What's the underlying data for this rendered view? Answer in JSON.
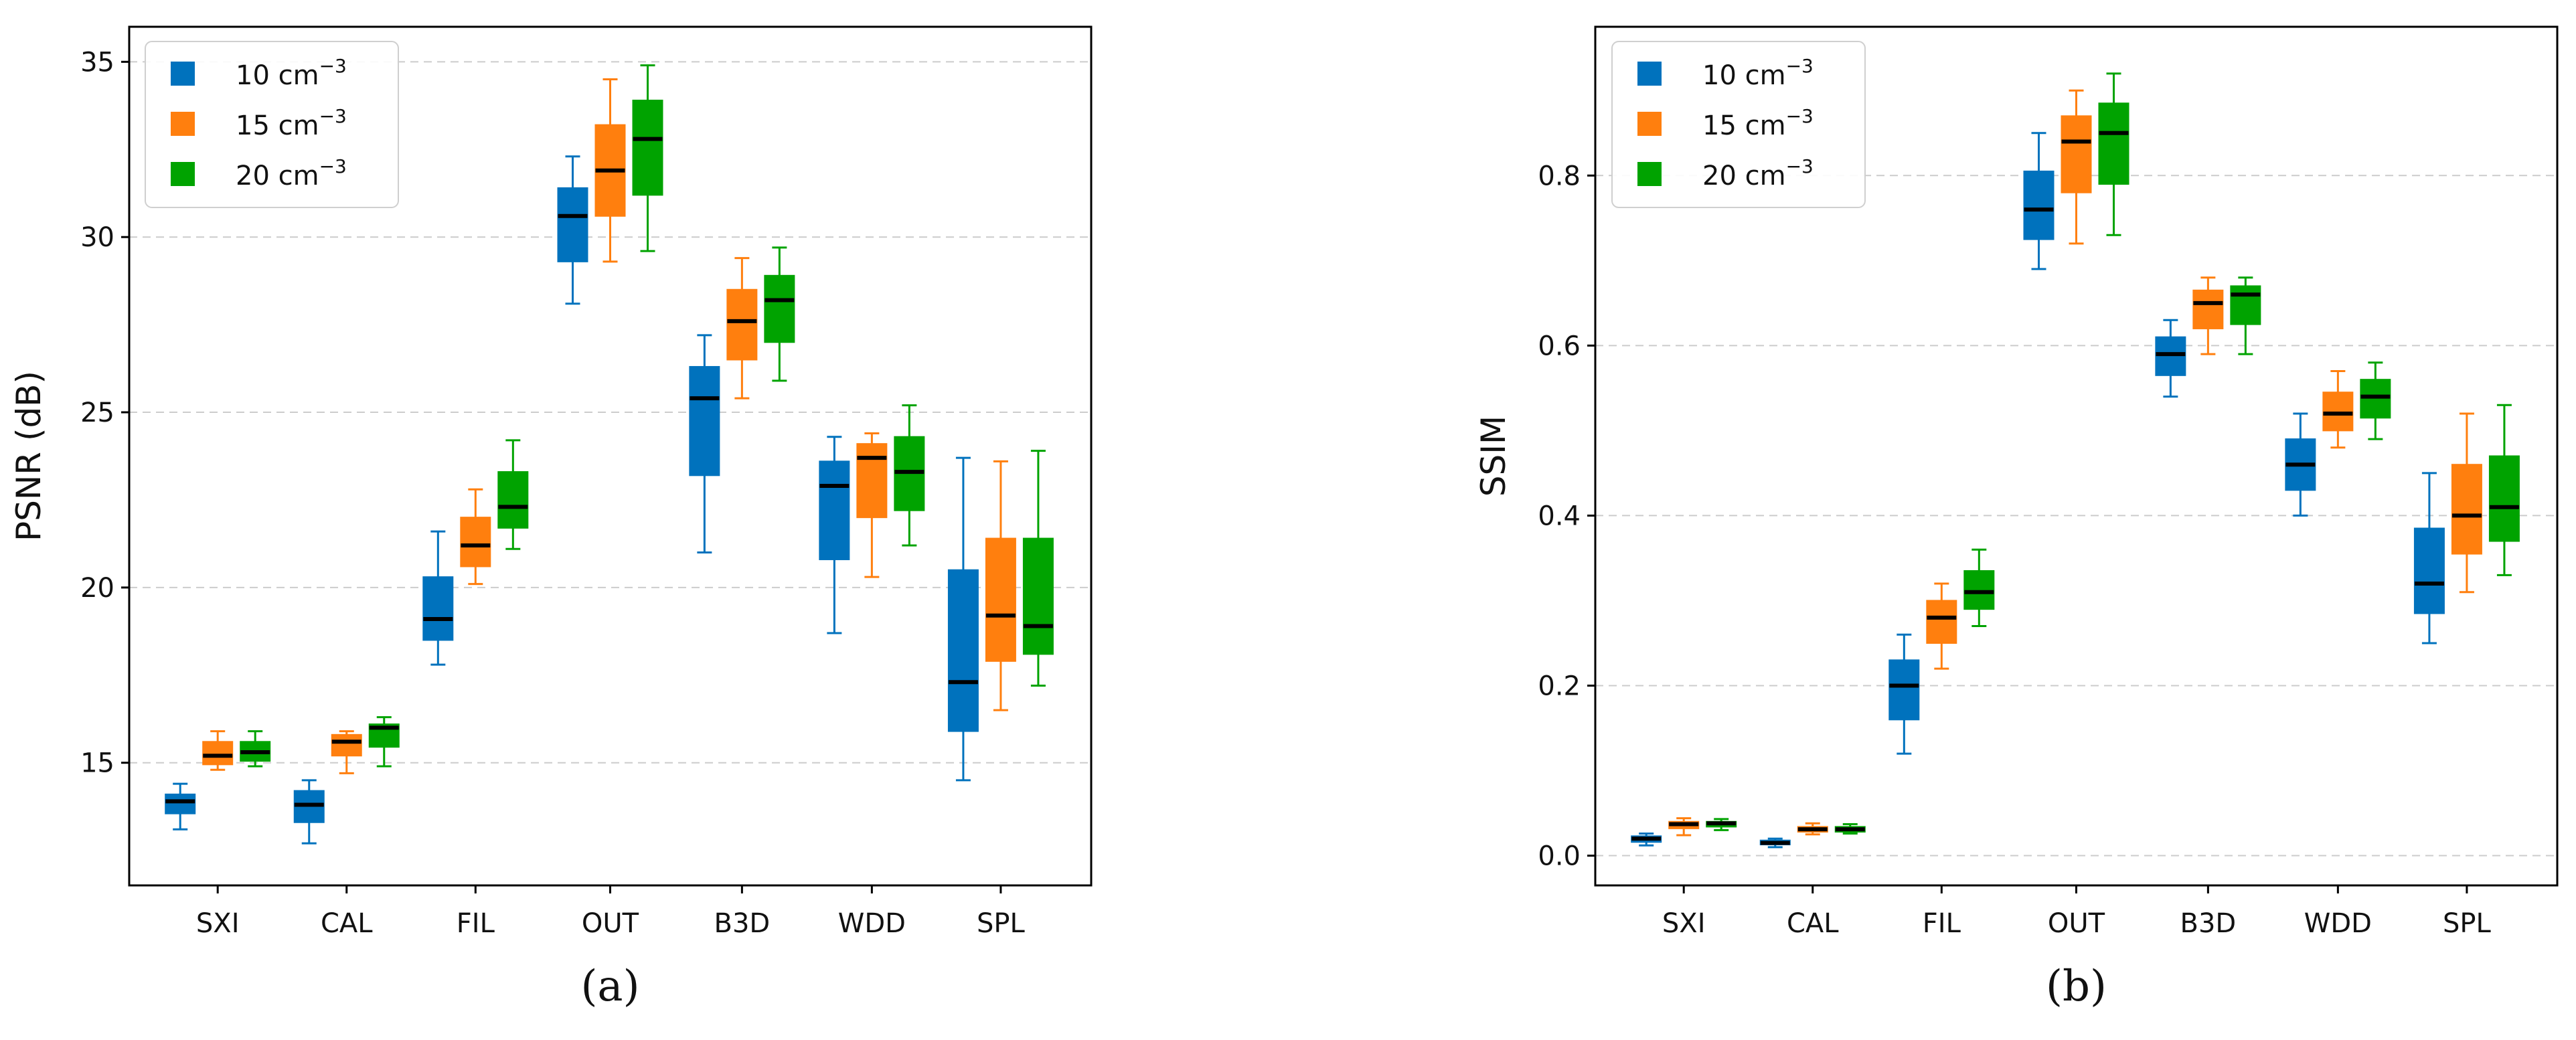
{
  "colors": {
    "10": "#0072bd",
    "15": "#ff7f0e",
    "20": "#00a300",
    "median": "#000000",
    "grid": "#cccccc"
  },
  "chart_data": [
    {
      "type": "boxplot",
      "panel": "(a)",
      "ylabel": "PSNR (dB)",
      "xlabel": "",
      "ylim": [
        11.5,
        36.0
      ],
      "yticks": [
        15,
        20,
        25,
        30,
        35
      ],
      "grid": "horizontal dashed",
      "legend_position": "top-left",
      "categories": [
        "SXI",
        "CAL",
        "FIL",
        "OUT",
        "B3D",
        "WDD",
        "SPL"
      ],
      "series": [
        {
          "name": "10 cm",
          "unit_sup": "−3",
          "color_key": "10",
          "boxes": [
            {
              "whislo": 13.1,
              "q1": 13.55,
              "med": 13.9,
              "q3": 14.1,
              "whishi": 14.4
            },
            {
              "whislo": 12.7,
              "q1": 13.3,
              "med": 13.8,
              "q3": 14.2,
              "whishi": 14.5
            },
            {
              "whislo": 17.8,
              "q1": 18.5,
              "med": 19.1,
              "q3": 20.3,
              "whishi": 21.6
            },
            {
              "whislo": 28.1,
              "q1": 29.3,
              "med": 30.6,
              "q3": 31.4,
              "whishi": 32.3
            },
            {
              "whislo": 21.0,
              "q1": 23.2,
              "med": 25.4,
              "q3": 26.3,
              "whishi": 27.2
            },
            {
              "whislo": 18.7,
              "q1": 20.8,
              "med": 22.9,
              "q3": 23.6,
              "whishi": 24.3
            },
            {
              "whislo": 14.5,
              "q1": 15.9,
              "med": 17.3,
              "q3": 20.5,
              "whishi": 23.7
            }
          ]
        },
        {
          "name": "15 cm",
          "unit_sup": "−3",
          "color_key": "15",
          "boxes": [
            {
              "whislo": 14.8,
              "q1": 14.95,
              "med": 15.2,
              "q3": 15.6,
              "whishi": 15.9
            },
            {
              "whislo": 14.7,
              "q1": 15.2,
              "med": 15.6,
              "q3": 15.8,
              "whishi": 15.9
            },
            {
              "whislo": 20.1,
              "q1": 20.6,
              "med": 21.2,
              "q3": 22.0,
              "whishi": 22.8
            },
            {
              "whislo": 29.3,
              "q1": 30.6,
              "med": 31.9,
              "q3": 33.2,
              "whishi": 34.5
            },
            {
              "whislo": 25.4,
              "q1": 26.5,
              "med": 27.6,
              "q3": 28.5,
              "whishi": 29.4
            },
            {
              "whislo": 20.3,
              "q1": 22.0,
              "med": 23.7,
              "q3": 24.1,
              "whishi": 24.4
            },
            {
              "whislo": 16.5,
              "q1": 17.9,
              "med": 19.2,
              "q3": 21.4,
              "whishi": 23.6
            }
          ]
        },
        {
          "name": "20 cm",
          "unit_sup": "−3",
          "color_key": "20",
          "boxes": [
            {
              "whislo": 14.9,
              "q1": 15.05,
              "med": 15.3,
              "q3": 15.6,
              "whishi": 15.9
            },
            {
              "whislo": 14.9,
              "q1": 15.45,
              "med": 16.0,
              "q3": 16.1,
              "whishi": 16.3
            },
            {
              "whislo": 21.1,
              "q1": 21.7,
              "med": 22.3,
              "q3": 23.3,
              "whishi": 24.2
            },
            {
              "whislo": 29.6,
              "q1": 31.2,
              "med": 32.8,
              "q3": 33.9,
              "whishi": 34.9
            },
            {
              "whislo": 25.9,
              "q1": 27.0,
              "med": 28.2,
              "q3": 28.9,
              "whishi": 29.7
            },
            {
              "whislo": 21.2,
              "q1": 22.2,
              "med": 23.3,
              "q3": 24.3,
              "whishi": 25.2
            },
            {
              "whislo": 17.2,
              "q1": 18.1,
              "med": 18.9,
              "q3": 21.4,
              "whishi": 23.9
            }
          ]
        }
      ]
    },
    {
      "type": "boxplot",
      "panel": "(b)",
      "ylabel": "SSIM",
      "xlabel": "",
      "ylim": [
        -0.035,
        0.975
      ],
      "yticks": [
        0.0,
        0.2,
        0.4,
        0.6,
        0.8
      ],
      "ytick_labels": [
        "0.0",
        "0.2",
        "0.4",
        "0.6",
        "0.8"
      ],
      "grid": "horizontal dashed",
      "legend_position": "top-left",
      "categories": [
        "SXI",
        "CAL",
        "FIL",
        "OUT",
        "B3D",
        "WDD",
        "SPL"
      ],
      "series": [
        {
          "name": "10 cm",
          "unit_sup": "−3",
          "color_key": "10",
          "boxes": [
            {
              "whislo": 0.012,
              "q1": 0.016,
              "med": 0.02,
              "q3": 0.023,
              "whishi": 0.026
            },
            {
              "whislo": 0.01,
              "q1": 0.013,
              "med": 0.015,
              "q3": 0.018,
              "whishi": 0.02
            },
            {
              "whislo": 0.12,
              "q1": 0.16,
              "med": 0.2,
              "q3": 0.23,
              "whishi": 0.26
            },
            {
              "whislo": 0.69,
              "q1": 0.725,
              "med": 0.76,
              "q3": 0.805,
              "whishi": 0.85
            },
            {
              "whislo": 0.54,
              "q1": 0.565,
              "med": 0.59,
              "q3": 0.61,
              "whishi": 0.63
            },
            {
              "whislo": 0.4,
              "q1": 0.43,
              "med": 0.46,
              "q3": 0.49,
              "whishi": 0.52
            },
            {
              "whislo": 0.25,
              "q1": 0.285,
              "med": 0.32,
              "q3": 0.385,
              "whishi": 0.45
            }
          ]
        },
        {
          "name": "15 cm",
          "unit_sup": "−3",
          "color_key": "15",
          "boxes": [
            {
              "whislo": 0.024,
              "q1": 0.032,
              "med": 0.037,
              "q3": 0.04,
              "whishi": 0.044
            },
            {
              "whislo": 0.025,
              "q1": 0.028,
              "med": 0.031,
              "q3": 0.034,
              "whishi": 0.038
            },
            {
              "whislo": 0.22,
              "q1": 0.25,
              "med": 0.28,
              "q3": 0.3,
              "whishi": 0.32
            },
            {
              "whislo": 0.72,
              "q1": 0.78,
              "med": 0.84,
              "q3": 0.87,
              "whishi": 0.9
            },
            {
              "whislo": 0.59,
              "q1": 0.62,
              "med": 0.65,
              "q3": 0.665,
              "whishi": 0.68
            },
            {
              "whislo": 0.48,
              "q1": 0.5,
              "med": 0.52,
              "q3": 0.545,
              "whishi": 0.57
            },
            {
              "whislo": 0.31,
              "q1": 0.355,
              "med": 0.4,
              "q3": 0.46,
              "whishi": 0.52
            }
          ]
        },
        {
          "name": "20 cm",
          "unit_sup": "−3",
          "color_key": "20",
          "boxes": [
            {
              "whislo": 0.03,
              "q1": 0.034,
              "med": 0.038,
              "q3": 0.04,
              "whishi": 0.043
            },
            {
              "whislo": 0.026,
              "q1": 0.028,
              "med": 0.031,
              "q3": 0.034,
              "whishi": 0.037
            },
            {
              "whislo": 0.27,
              "q1": 0.29,
              "med": 0.31,
              "q3": 0.335,
              "whishi": 0.36
            },
            {
              "whislo": 0.73,
              "q1": 0.79,
              "med": 0.85,
              "q3": 0.885,
              "whishi": 0.92
            },
            {
              "whislo": 0.59,
              "q1": 0.625,
              "med": 0.66,
              "q3": 0.67,
              "whishi": 0.68
            },
            {
              "whislo": 0.49,
              "q1": 0.515,
              "med": 0.54,
              "q3": 0.56,
              "whishi": 0.58
            },
            {
              "whislo": 0.33,
              "q1": 0.37,
              "med": 0.41,
              "q3": 0.47,
              "whishi": 0.53
            }
          ]
        }
      ]
    }
  ]
}
